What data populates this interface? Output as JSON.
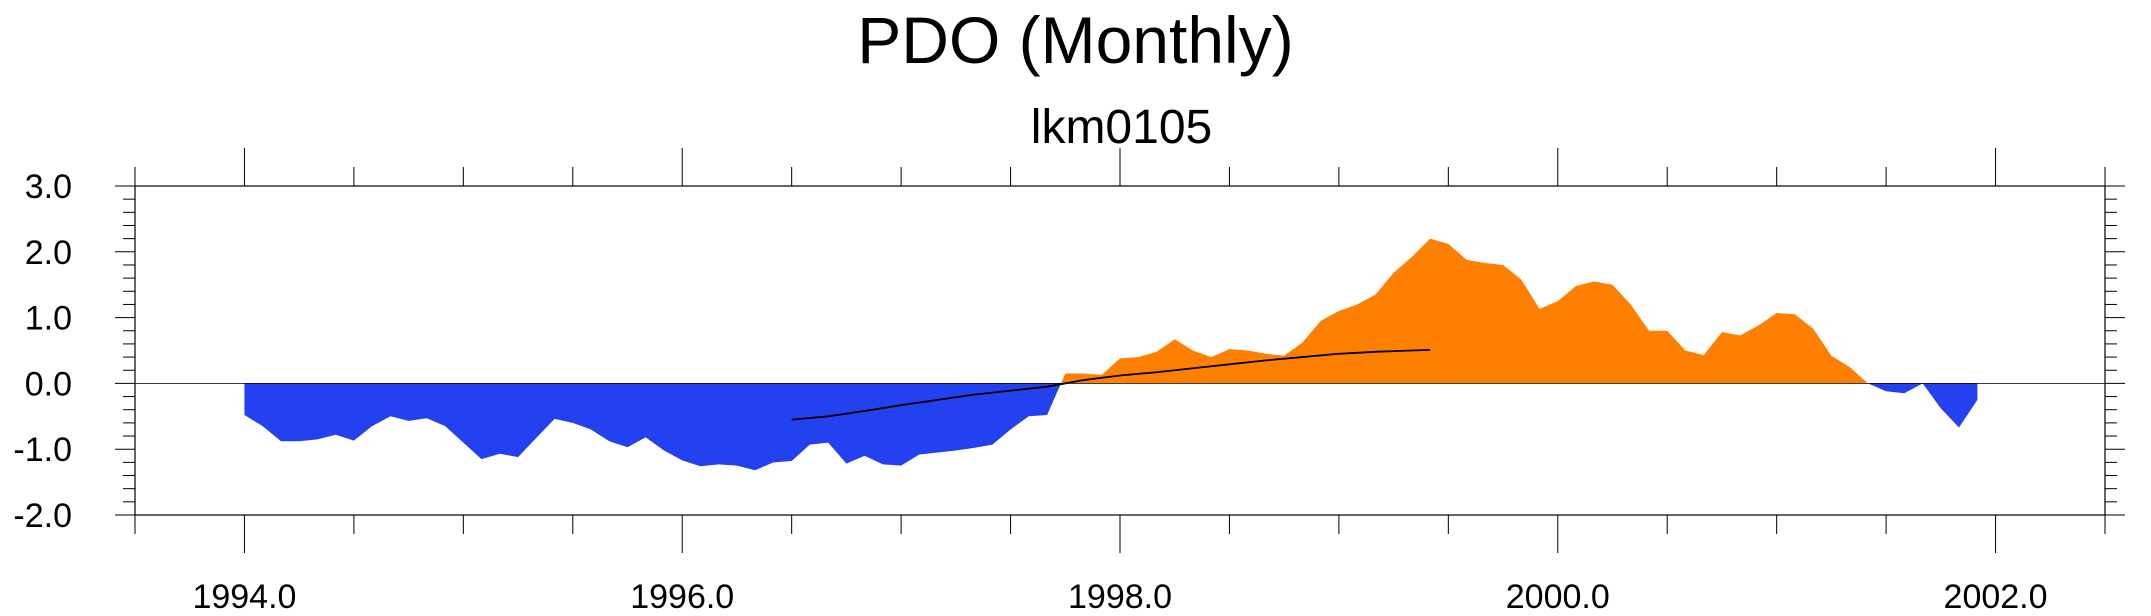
{
  "chart_data": {
    "type": "area",
    "title": "PDO (Monthly)",
    "subtitle": "lkm0105",
    "xlabel": "",
    "ylabel": "",
    "xlim": [
      1993.5,
      2002.5
    ],
    "ylim": [
      -2.0,
      3.0
    ],
    "x_ticks": [
      1994.0,
      1996.0,
      1998.0,
      2000.0,
      2002.0
    ],
    "x_tick_labels": [
      "1994.0",
      "1996.0",
      "1998.0",
      "2000.0",
      "2002.0"
    ],
    "y_ticks": [
      -2.0,
      -1.0,
      0.0,
      1.0,
      2.0,
      3.0
    ],
    "y_tick_labels": [
      "-2.0",
      "-1.0",
      "0.0",
      "1.0",
      "2.0",
      "3.0"
    ],
    "positive_color": "#ff8000",
    "negative_color": "#2441f0",
    "line_color": "#000000",
    "grid": false,
    "series": [
      {
        "kind": "filled",
        "x": [
          1994.0,
          1994.083,
          1994.167,
          1994.25,
          1994.333,
          1994.417,
          1994.5,
          1994.583,
          1994.667,
          1994.75,
          1994.833,
          1994.917,
          1995.0,
          1995.083,
          1995.167,
          1995.25,
          1995.333,
          1995.417,
          1995.5,
          1995.583,
          1995.667,
          1995.75,
          1995.833,
          1995.917,
          1996.0,
          1996.083,
          1996.167,
          1996.25,
          1996.333,
          1996.417,
          1996.5,
          1996.583,
          1996.667,
          1996.75,
          1996.833,
          1996.917,
          1997.0,
          1997.083,
          1997.167,
          1997.25,
          1997.333,
          1997.417,
          1997.5,
          1997.583,
          1997.667,
          1997.75,
          1997.833,
          1997.917,
          1998.0,
          1998.083,
          1998.167,
          1998.25,
          1998.333,
          1998.417,
          1998.5,
          1998.583,
          1998.667,
          1998.75,
          1998.833,
          1998.917,
          1999.0,
          1999.083,
          1999.167,
          1999.25,
          1999.333,
          1999.417,
          1999.5,
          1999.583,
          1999.667,
          1999.75,
          1999.833,
          1999.917,
          2000.0,
          2000.083,
          2000.167,
          2000.25,
          2000.333,
          2000.417,
          2000.5,
          2000.583,
          2000.667,
          2000.75,
          2000.833,
          2000.917,
          2001.0,
          2001.083,
          2001.167,
          2001.25,
          2001.333,
          2001.417,
          2001.5,
          2001.583,
          2001.667,
          2001.75,
          2001.833,
          2001.917
        ],
        "values": [
          -0.48,
          -0.65,
          -0.88,
          -0.88,
          -0.85,
          -0.78,
          -0.87,
          -0.65,
          -0.5,
          -0.57,
          -0.53,
          -0.65,
          -0.9,
          -1.15,
          -1.07,
          -1.12,
          -0.83,
          -0.54,
          -0.6,
          -0.7,
          -0.88,
          -0.97,
          -0.82,
          -1.02,
          -1.17,
          -1.26,
          -1.23,
          -1.25,
          -1.32,
          -1.2,
          -1.18,
          -0.93,
          -0.9,
          -1.22,
          -1.1,
          -1.23,
          -1.25,
          -1.08,
          -1.05,
          -1.02,
          -0.98,
          -0.93,
          -0.7,
          -0.5,
          -0.48,
          0.15,
          0.15,
          0.13,
          0.38,
          0.4,
          0.48,
          0.67,
          0.5,
          0.4,
          0.52,
          0.5,
          0.45,
          0.42,
          0.62,
          0.95,
          1.1,
          1.2,
          1.35,
          1.68,
          1.92,
          2.2,
          2.12,
          1.88,
          1.83,
          1.8,
          1.58,
          1.13,
          1.25,
          1.48,
          1.55,
          1.5,
          1.2,
          0.8,
          0.8,
          0.5,
          0.43,
          0.78,
          0.73,
          0.88,
          1.07,
          1.05,
          0.83,
          0.42,
          0.25,
          0.0,
          -0.12,
          -0.15,
          0.0,
          -0.38,
          -0.67,
          -0.25
        ]
      },
      {
        "kind": "line",
        "x": [
          1996.5,
          1996.667,
          1996.833,
          1997.0,
          1997.167,
          1997.333,
          1997.5,
          1997.667,
          1997.833,
          1998.0,
          1998.167,
          1998.333,
          1998.5,
          1998.667,
          1998.833,
          1999.0,
          1999.167,
          1999.333,
          1999.417
        ],
        "values": [
          -0.55,
          -0.5,
          -0.42,
          -0.33,
          -0.25,
          -0.17,
          -0.11,
          -0.05,
          0.05,
          0.12,
          0.17,
          0.23,
          0.29,
          0.35,
          0.4,
          0.45,
          0.48,
          0.5,
          0.51
        ]
      }
    ]
  }
}
